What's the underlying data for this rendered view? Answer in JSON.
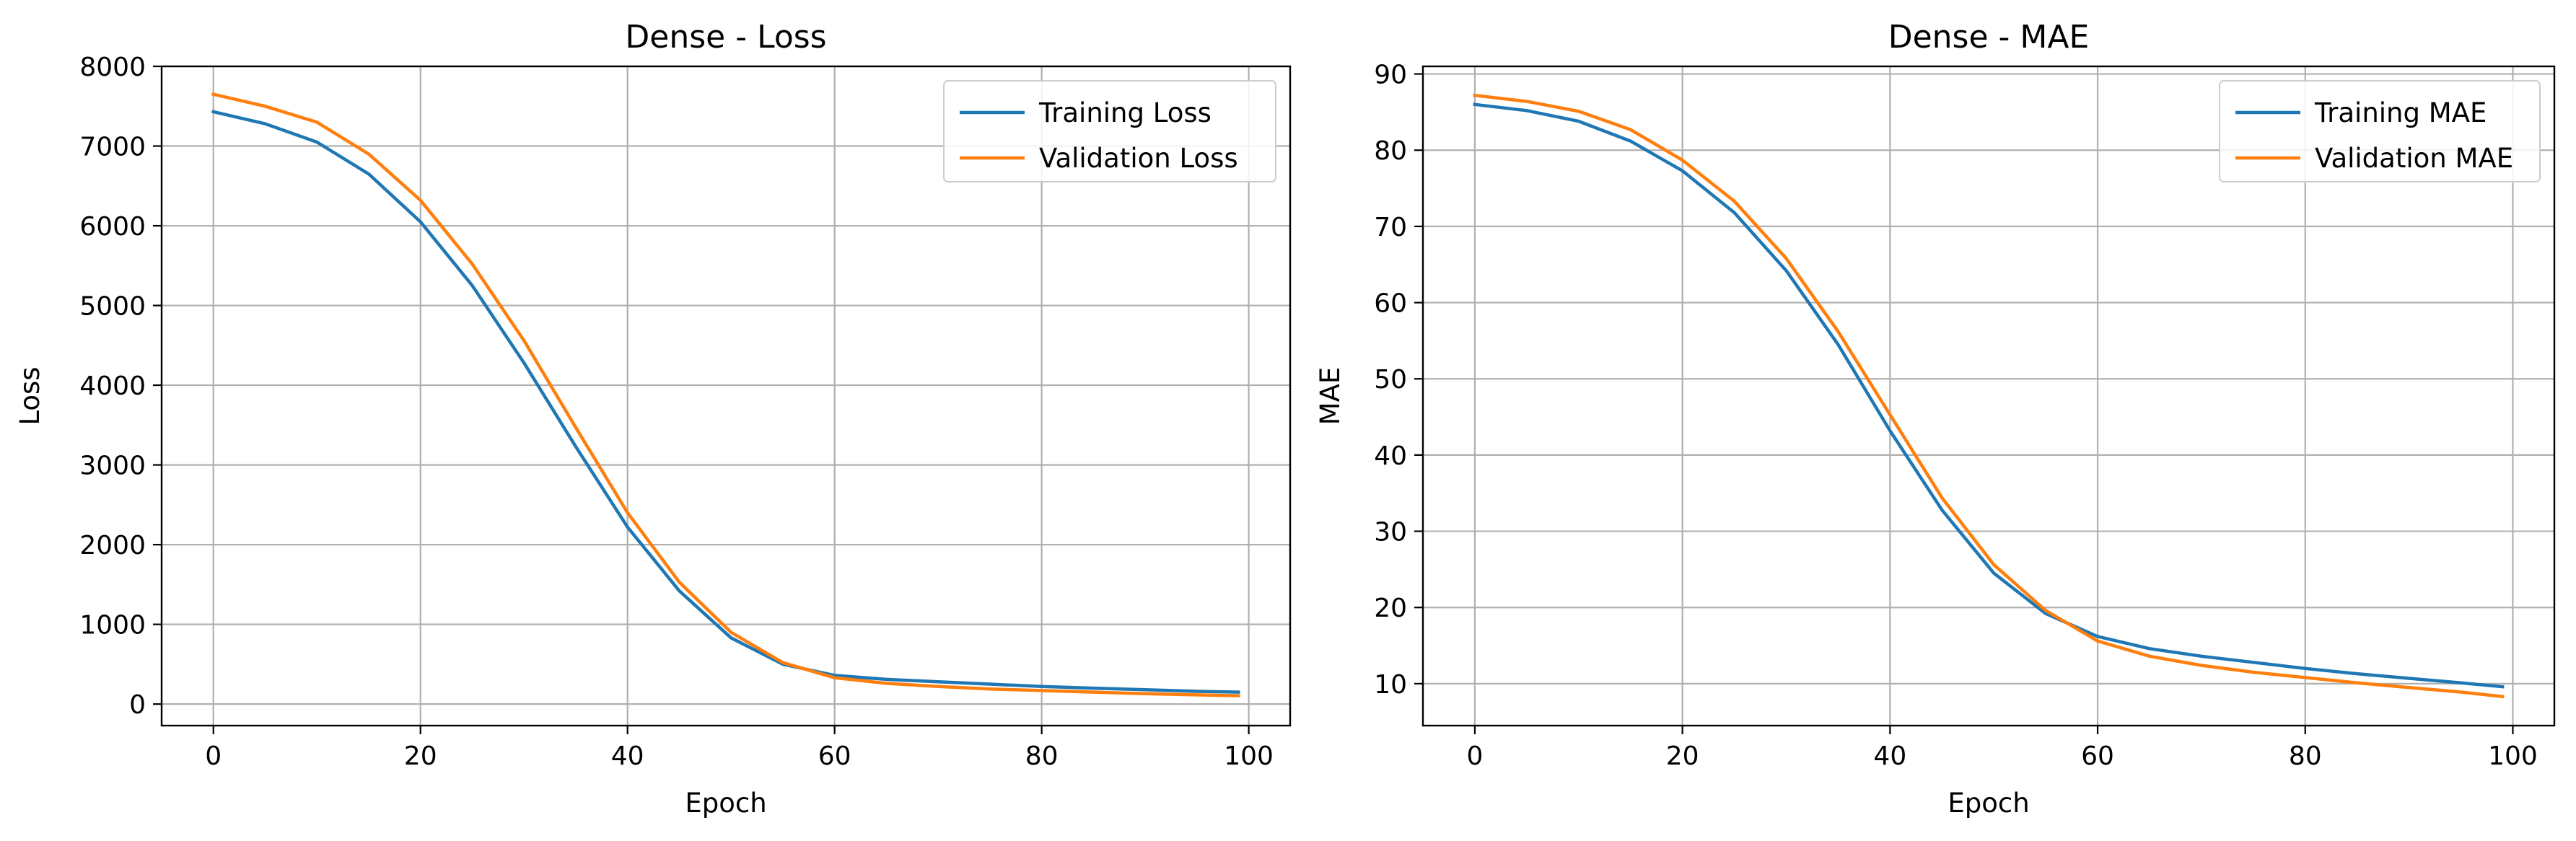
{
  "chart_data": [
    {
      "type": "line",
      "title": "Dense - Loss",
      "xlabel": "Epoch",
      "ylabel": "Loss",
      "xlim": [
        -5,
        104
      ],
      "ylim": [
        -270,
        8000
      ],
      "xticks": [
        0,
        20,
        40,
        60,
        80,
        100
      ],
      "yticks": [
        0,
        1000,
        2000,
        3000,
        4000,
        5000,
        6000,
        7000,
        8000
      ],
      "grid": true,
      "legend": "top-right",
      "x": [
        0,
        5,
        10,
        15,
        20,
        25,
        30,
        35,
        40,
        45,
        50,
        55,
        60,
        65,
        70,
        75,
        80,
        85,
        90,
        95,
        99
      ],
      "series": [
        {
          "name": "Training Loss",
          "color": "#1f77b4",
          "values": [
            7430,
            7280,
            7050,
            6650,
            6050,
            5250,
            4280,
            3230,
            2220,
            1420,
            830,
            500,
            360,
            310,
            280,
            250,
            220,
            200,
            180,
            160,
            150
          ]
        },
        {
          "name": "Validation Loss",
          "color": "#ff7f0e",
          "values": [
            7650,
            7500,
            7300,
            6900,
            6320,
            5520,
            4560,
            3470,
            2400,
            1530,
            900,
            520,
            330,
            260,
            220,
            190,
            170,
            150,
            130,
            115,
            105
          ]
        }
      ]
    },
    {
      "type": "line",
      "title": "Dense - MAE",
      "xlabel": "Epoch",
      "ylabel": "MAE",
      "xlim": [
        -5,
        104
      ],
      "ylim": [
        4.5,
        91
      ],
      "xticks": [
        0,
        20,
        40,
        60,
        80,
        100
      ],
      "yticks": [
        10,
        20,
        30,
        40,
        50,
        60,
        70,
        80,
        90
      ],
      "grid": true,
      "legend": "top-right",
      "x": [
        0,
        5,
        10,
        15,
        20,
        25,
        30,
        35,
        40,
        45,
        50,
        55,
        60,
        65,
        70,
        75,
        80,
        85,
        90,
        95,
        99
      ],
      "series": [
        {
          "name": "Training MAE",
          "color": "#1f77b4",
          "values": [
            86,
            85.2,
            83.8,
            81.2,
            77.3,
            71.8,
            64.2,
            54.5,
            43.2,
            32.8,
            24.5,
            19.2,
            16.2,
            14.6,
            13.6,
            12.8,
            12.0,
            11.3,
            10.7,
            10.1,
            9.6
          ]
        },
        {
          "name": "Validation MAE",
          "color": "#ff7f0e",
          "values": [
            87.2,
            86.4,
            85.1,
            82.7,
            78.7,
            73.3,
            65.8,
            56.2,
            45.3,
            34.4,
            25.6,
            19.6,
            15.6,
            13.6,
            12.4,
            11.5,
            10.8,
            10.1,
            9.5,
            8.9,
            8.3
          ]
        }
      ]
    }
  ]
}
